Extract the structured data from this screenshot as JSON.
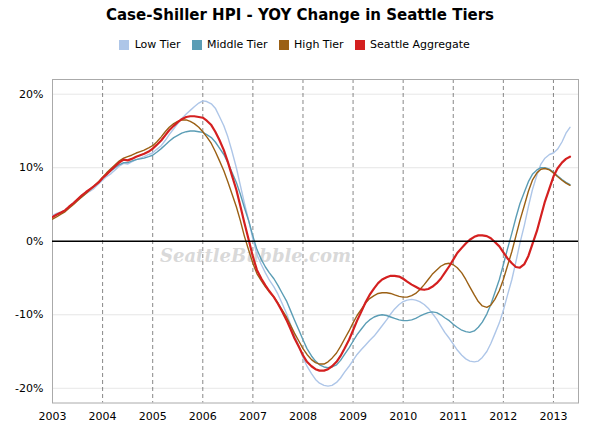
{
  "chart_data": {
    "type": "line",
    "title": "Case-Shiller HPI - YOY Change in Seattle Tiers",
    "annotations": [
      "SeattleBubble.com"
    ],
    "x": [
      2003.0,
      2003.08,
      2003.17,
      2003.25,
      2003.33,
      2003.42,
      2003.5,
      2003.58,
      2003.67,
      2003.75,
      2003.83,
      2003.92,
      2004.0,
      2004.08,
      2004.17,
      2004.25,
      2004.33,
      2004.42,
      2004.5,
      2004.58,
      2004.67,
      2004.75,
      2004.83,
      2004.92,
      2005.0,
      2005.08,
      2005.17,
      2005.25,
      2005.33,
      2005.42,
      2005.5,
      2005.58,
      2005.67,
      2005.75,
      2005.83,
      2005.92,
      2006.0,
      2006.08,
      2006.17,
      2006.25,
      2006.33,
      2006.42,
      2006.5,
      2006.58,
      2006.67,
      2006.75,
      2006.83,
      2006.92,
      2007.0,
      2007.08,
      2007.17,
      2007.25,
      2007.33,
      2007.42,
      2007.5,
      2007.58,
      2007.67,
      2007.75,
      2007.83,
      2007.92,
      2008.0,
      2008.08,
      2008.17,
      2008.25,
      2008.33,
      2008.42,
      2008.5,
      2008.58,
      2008.67,
      2008.75,
      2008.83,
      2008.92,
      2009.0,
      2009.08,
      2009.17,
      2009.25,
      2009.33,
      2009.42,
      2009.5,
      2009.58,
      2009.67,
      2009.75,
      2009.83,
      2009.92,
      2010.0,
      2010.08,
      2010.17,
      2010.25,
      2010.33,
      2010.42,
      2010.5,
      2010.58,
      2010.67,
      2010.75,
      2010.83,
      2010.92,
      2011.0,
      2011.08,
      2011.17,
      2011.25,
      2011.33,
      2011.42,
      2011.5,
      2011.58,
      2011.67,
      2011.75,
      2011.83,
      2011.92,
      2012.0,
      2012.08,
      2012.17,
      2012.25,
      2012.33,
      2012.42,
      2012.5,
      2012.58,
      2012.67,
      2012.75,
      2012.83,
      2012.92,
      2013.0,
      2013.08,
      2013.17,
      2013.25,
      2013.33
    ],
    "series": [
      {
        "name": "Low Tier",
        "color": "#aec6e8",
        "values": [
          0.035,
          0.038,
          0.04,
          0.042,
          0.047,
          0.052,
          0.057,
          0.06,
          0.065,
          0.068,
          0.072,
          0.078,
          0.083,
          0.088,
          0.092,
          0.097,
          0.102,
          0.106,
          0.105,
          0.108,
          0.111,
          0.113,
          0.115,
          0.118,
          0.12,
          0.125,
          0.13,
          0.137,
          0.145,
          0.153,
          0.16,
          0.167,
          0.173,
          0.178,
          0.183,
          0.188,
          0.191,
          0.19,
          0.187,
          0.181,
          0.17,
          0.157,
          0.142,
          0.123,
          0.1,
          0.076,
          0.052,
          0.027,
          0.003,
          -0.018,
          -0.032,
          -0.043,
          -0.053,
          -0.062,
          -0.072,
          -0.084,
          -0.098,
          -0.113,
          -0.128,
          -0.143,
          -0.158,
          -0.17,
          -0.18,
          -0.188,
          -0.193,
          -0.196,
          -0.197,
          -0.196,
          -0.192,
          -0.186,
          -0.178,
          -0.17,
          -0.162,
          -0.154,
          -0.147,
          -0.141,
          -0.135,
          -0.129,
          -0.122,
          -0.115,
          -0.107,
          -0.099,
          -0.092,
          -0.086,
          -0.082,
          -0.08,
          -0.079,
          -0.08,
          -0.082,
          -0.086,
          -0.091,
          -0.098,
          -0.106,
          -0.115,
          -0.124,
          -0.132,
          -0.14,
          -0.148,
          -0.155,
          -0.16,
          -0.163,
          -0.164,
          -0.163,
          -0.158,
          -0.15,
          -0.139,
          -0.126,
          -0.111,
          -0.094,
          -0.074,
          -0.052,
          -0.028,
          -0.003,
          0.022,
          0.047,
          0.07,
          0.09,
          0.105,
          0.113,
          0.118,
          0.12,
          0.125,
          0.135,
          0.147,
          0.155
        ]
      },
      {
        "name": "Middle Tier",
        "color": "#5b9db5",
        "values": [
          0.033,
          0.036,
          0.039,
          0.042,
          0.047,
          0.052,
          0.057,
          0.062,
          0.067,
          0.071,
          0.075,
          0.08,
          0.086,
          0.091,
          0.096,
          0.1,
          0.104,
          0.107,
          0.107,
          0.109,
          0.111,
          0.112,
          0.113,
          0.115,
          0.117,
          0.121,
          0.126,
          0.131,
          0.136,
          0.141,
          0.144,
          0.147,
          0.149,
          0.15,
          0.15,
          0.149,
          0.148,
          0.145,
          0.141,
          0.135,
          0.127,
          0.118,
          0.107,
          0.094,
          0.08,
          0.064,
          0.046,
          0.027,
          0.007,
          -0.011,
          -0.025,
          -0.035,
          -0.043,
          -0.051,
          -0.06,
          -0.07,
          -0.081,
          -0.094,
          -0.107,
          -0.121,
          -0.134,
          -0.146,
          -0.156,
          -0.163,
          -0.168,
          -0.171,
          -0.172,
          -0.171,
          -0.168,
          -0.162,
          -0.154,
          -0.145,
          -0.136,
          -0.127,
          -0.119,
          -0.112,
          -0.107,
          -0.103,
          -0.101,
          -0.1,
          -0.101,
          -0.103,
          -0.105,
          -0.107,
          -0.108,
          -0.108,
          -0.107,
          -0.105,
          -0.102,
          -0.099,
          -0.097,
          -0.096,
          -0.097,
          -0.1,
          -0.104,
          -0.108,
          -0.113,
          -0.117,
          -0.121,
          -0.123,
          -0.124,
          -0.122,
          -0.117,
          -0.11,
          -0.099,
          -0.086,
          -0.07,
          -0.052,
          -0.032,
          -0.011,
          0.011,
          0.032,
          0.051,
          0.067,
          0.081,
          0.091,
          0.097,
          0.1,
          0.1,
          0.098,
          0.094,
          0.089,
          0.084,
          0.08,
          0.077
        ]
      },
      {
        "name": "High Tier",
        "color": "#9b6014",
        "values": [
          0.03,
          0.033,
          0.037,
          0.04,
          0.045,
          0.05,
          0.055,
          0.06,
          0.065,
          0.07,
          0.075,
          0.081,
          0.087,
          0.093,
          0.099,
          0.104,
          0.109,
          0.113,
          0.115,
          0.117,
          0.12,
          0.122,
          0.124,
          0.127,
          0.13,
          0.135,
          0.142,
          0.149,
          0.155,
          0.16,
          0.163,
          0.165,
          0.165,
          0.163,
          0.16,
          0.155,
          0.149,
          0.142,
          0.133,
          0.122,
          0.11,
          0.096,
          0.081,
          0.065,
          0.047,
          0.028,
          0.007,
          -0.013,
          -0.03,
          -0.044,
          -0.054,
          -0.062,
          -0.069,
          -0.076,
          -0.084,
          -0.093,
          -0.103,
          -0.114,
          -0.125,
          -0.136,
          -0.146,
          -0.154,
          -0.161,
          -0.165,
          -0.167,
          -0.167,
          -0.164,
          -0.159,
          -0.152,
          -0.143,
          -0.133,
          -0.122,
          -0.111,
          -0.101,
          -0.092,
          -0.084,
          -0.078,
          -0.074,
          -0.071,
          -0.07,
          -0.07,
          -0.071,
          -0.073,
          -0.075,
          -0.076,
          -0.076,
          -0.074,
          -0.071,
          -0.066,
          -0.059,
          -0.052,
          -0.045,
          -0.039,
          -0.034,
          -0.031,
          -0.03,
          -0.032,
          -0.036,
          -0.043,
          -0.052,
          -0.062,
          -0.073,
          -0.082,
          -0.088,
          -0.09,
          -0.087,
          -0.079,
          -0.067,
          -0.052,
          -0.034,
          -0.014,
          0.007,
          0.028,
          0.049,
          0.068,
          0.083,
          0.093,
          0.098,
          0.099,
          0.097,
          0.093,
          0.088,
          0.083,
          0.079,
          0.076
        ]
      },
      {
        "name": "Seattle Aggregate",
        "color": "#d42020",
        "values": [
          0.033,
          0.036,
          0.039,
          0.042,
          0.047,
          0.052,
          0.057,
          0.062,
          0.067,
          0.071,
          0.075,
          0.08,
          0.086,
          0.091,
          0.097,
          0.102,
          0.107,
          0.111,
          0.11,
          0.112,
          0.115,
          0.117,
          0.119,
          0.122,
          0.126,
          0.131,
          0.137,
          0.144,
          0.151,
          0.157,
          0.162,
          0.166,
          0.169,
          0.17,
          0.17,
          0.169,
          0.168,
          0.164,
          0.158,
          0.149,
          0.138,
          0.124,
          0.108,
          0.09,
          0.07,
          0.048,
          0.025,
          0.001,
          -0.021,
          -0.039,
          -0.051,
          -0.06,
          -0.068,
          -0.076,
          -0.085,
          -0.095,
          -0.107,
          -0.119,
          -0.132,
          -0.144,
          -0.155,
          -0.164,
          -0.17,
          -0.174,
          -0.176,
          -0.176,
          -0.174,
          -0.17,
          -0.164,
          -0.156,
          -0.146,
          -0.134,
          -0.121,
          -0.108,
          -0.095,
          -0.083,
          -0.073,
          -0.064,
          -0.057,
          -0.052,
          -0.049,
          -0.047,
          -0.047,
          -0.048,
          -0.051,
          -0.055,
          -0.059,
          -0.062,
          -0.065,
          -0.066,
          -0.065,
          -0.062,
          -0.057,
          -0.051,
          -0.043,
          -0.034,
          -0.025,
          -0.016,
          -0.009,
          -0.003,
          0.002,
          0.006,
          0.008,
          0.008,
          0.007,
          0.004,
          -0.001,
          -0.007,
          -0.015,
          -0.023,
          -0.03,
          -0.035,
          -0.036,
          -0.031,
          -0.02,
          -0.004,
          0.014,
          0.034,
          0.054,
          0.072,
          0.088,
          0.099,
          0.107,
          0.112,
          0.115
        ]
      }
    ],
    "xlim": [
      2003.0,
      2013.5
    ],
    "xticks": [
      2003,
      2004,
      2005,
      2006,
      2007,
      2008,
      2009,
      2010,
      2011,
      2012,
      2013
    ],
    "ylim": [
      -0.22,
      0.22
    ],
    "yticks": [
      {
        "value": -0.2,
        "label": "-20%"
      },
      {
        "value": -0.1,
        "label": "-10%"
      },
      {
        "value": 0.0,
        "label": "0%"
      },
      {
        "value": 0.1,
        "label": "10%"
      },
      {
        "value": 0.2,
        "label": "20%"
      }
    ],
    "grid": true,
    "legend": "top"
  }
}
